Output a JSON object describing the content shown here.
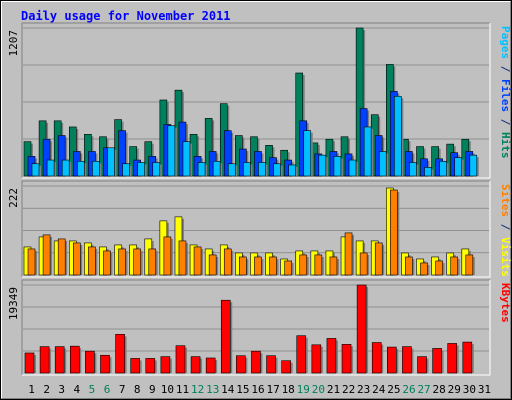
{
  "chart_data": [
    {
      "type": "bar",
      "title": "Daily usage for November 2011",
      "panel": "top",
      "ymax_label": "1207",
      "ylim": [
        0,
        1207
      ],
      "y_axis_right_label_parts": [
        {
          "text": "Pages",
          "color": "#00c0ff"
        },
        {
          "text": " / ",
          "color": "#1d2e81"
        },
        {
          "text": "Files",
          "color": "#0040ff"
        },
        {
          "text": " / ",
          "color": "#1d2e81"
        },
        {
          "text": "Hits",
          "color": "#00805c"
        }
      ],
      "categories": [
        "1",
        "2",
        "3",
        "4",
        "5",
        "6",
        "7",
        "8",
        "9",
        "10",
        "11",
        "12",
        "13",
        "14",
        "15",
        "16",
        "17",
        "18",
        "19",
        "20",
        "21",
        "22",
        "23",
        "24",
        "25",
        "26",
        "27",
        "28",
        "29",
        "30",
        "31"
      ],
      "weekend_days": [
        "5",
        "6",
        "12",
        "13",
        "19",
        "20",
        "26",
        "27"
      ],
      "series": [
        {
          "name": "Hits",
          "color": "#00805c",
          "values": [
            280,
            450,
            450,
            400,
            340,
            320,
            460,
            240,
            280,
            620,
            700,
            340,
            470,
            590,
            330,
            320,
            250,
            210,
            840,
            270,
            300,
            320,
            1207,
            500,
            910,
            300,
            240,
            240,
            260,
            300,
            0
          ]
        },
        {
          "name": "Files",
          "color": "#0040ff",
          "values": [
            160,
            300,
            330,
            200,
            200,
            230,
            370,
            130,
            160,
            420,
            440,
            160,
            200,
            370,
            220,
            200,
            150,
            130,
            450,
            180,
            200,
            180,
            550,
            330,
            690,
            200,
            140,
            140,
            190,
            200,
            0
          ]
        },
        {
          "name": "Pages",
          "color": "#00c0ff",
          "values": [
            100,
            130,
            130,
            120,
            120,
            230,
            100,
            110,
            110,
            410,
            280,
            110,
            120,
            100,
            110,
            110,
            100,
            90,
            370,
            170,
            160,
            130,
            400,
            200,
            650,
            110,
            70,
            120,
            150,
            170,
            0
          ]
        }
      ]
    },
    {
      "type": "bar",
      "panel": "middle",
      "ymax_label": "222",
      "ylim": [
        0,
        222
      ],
      "y_axis_right_label_parts": [
        {
          "text": "Sites",
          "color": "#ff8000"
        },
        {
          "text": " / ",
          "color": "#1d2e81"
        },
        {
          "text": "Visits",
          "color": "#ffff00"
        }
      ],
      "categories": [
        "1",
        "2",
        "3",
        "4",
        "5",
        "6",
        "7",
        "8",
        "9",
        "10",
        "11",
        "12",
        "13",
        "14",
        "15",
        "16",
        "17",
        "18",
        "19",
        "20",
        "21",
        "22",
        "23",
        "24",
        "25",
        "26",
        "27",
        "28",
        "29",
        "30",
        "31"
      ],
      "series": [
        {
          "name": "Visits",
          "color": "#ffff00",
          "values": [
            70,
            95,
            85,
            85,
            80,
            70,
            75,
            75,
            90,
            135,
            145,
            75,
            65,
            75,
            55,
            55,
            55,
            40,
            60,
            60,
            60,
            95,
            85,
            85,
            217,
            55,
            40,
            45,
            55,
            65,
            0
          ]
        },
        {
          "name": "Sites",
          "color": "#ff8000",
          "values": [
            65,
            100,
            90,
            80,
            70,
            60,
            65,
            65,
            65,
            95,
            85,
            70,
            50,
            65,
            45,
            45,
            45,
            35,
            50,
            50,
            45,
            105,
            55,
            80,
            212,
            45,
            30,
            35,
            45,
            50,
            0
          ]
        }
      ]
    },
    {
      "type": "bar",
      "panel": "bottom",
      "ymax_label": "19349",
      "ylim": [
        0,
        19349
      ],
      "y_axis_right_label_parts": [
        {
          "text": "KBytes",
          "color": "#ff0000"
        }
      ],
      "categories": [
        "1",
        "2",
        "3",
        "4",
        "5",
        "6",
        "7",
        "8",
        "9",
        "10",
        "11",
        "12",
        "13",
        "14",
        "15",
        "16",
        "17",
        "18",
        "19",
        "20",
        "21",
        "22",
        "23",
        "24",
        "25",
        "26",
        "27",
        "28",
        "29",
        "30",
        "31"
      ],
      "series": [
        {
          "name": "KBytes",
          "color": "#ff0000",
          "values": [
            4400,
            5800,
            5800,
            5900,
            4800,
            3900,
            8500,
            3200,
            3200,
            3600,
            6000,
            3600,
            3300,
            16000,
            3800,
            4800,
            3800,
            2700,
            8200,
            6200,
            7600,
            6300,
            19349,
            6700,
            5700,
            5800,
            3600,
            5400,
            6500,
            6800,
            0
          ]
        }
      ]
    }
  ]
}
